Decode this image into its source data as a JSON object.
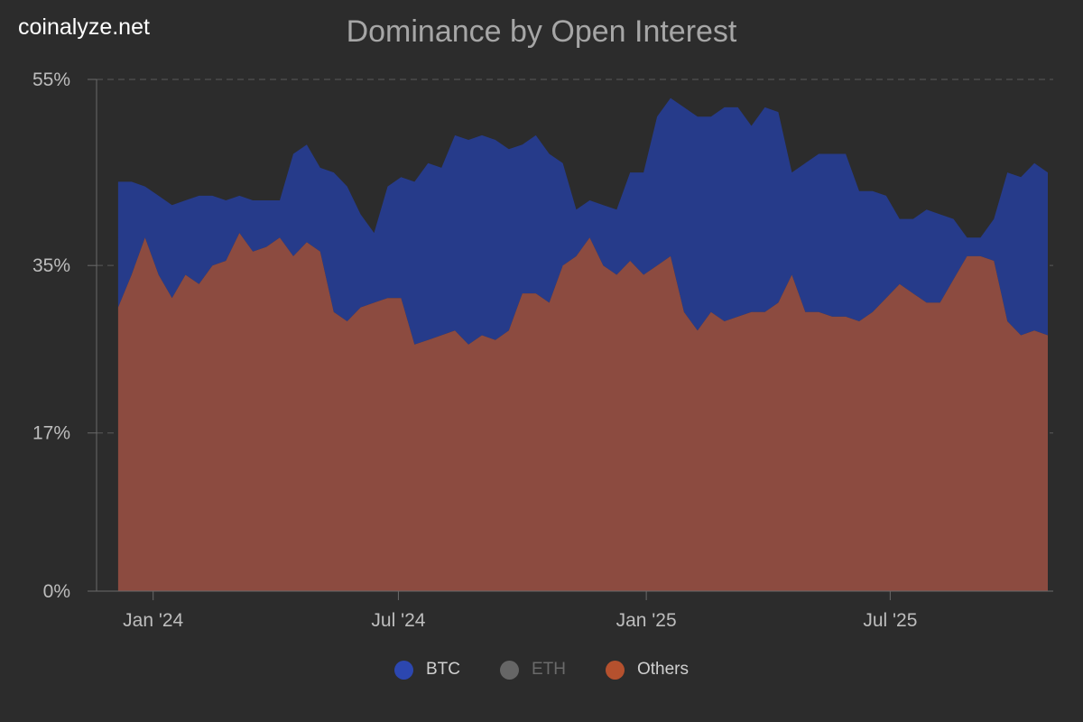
{
  "brand": "coinalyze.net",
  "chart_data": {
    "type": "area",
    "title": "Dominance by Open Interest",
    "stacked": true,
    "y_ticks": [
      "55%",
      "35%",
      "17%",
      "0%"
    ],
    "y_tick_values": [
      55,
      35,
      17,
      0
    ],
    "ylim": [
      0,
      55
    ],
    "x_ticks": [
      {
        "date": "2024-01-01",
        "label": "Jan '24"
      },
      {
        "date": "2024-07-01",
        "label": "Jul '24"
      },
      {
        "date": "2025-01-01",
        "label": "Jan '25"
      },
      {
        "date": "2025-07-01",
        "label": "Jul '25"
      }
    ],
    "xlim": [
      "2023-11-20",
      "2025-10-30"
    ],
    "grid": "horizontal dashed",
    "legend_position": "bottom",
    "colors": {
      "BTC": "#263b8a",
      "ETH": "#666666",
      "Others": "#8c4b40",
      "Others_legend": "#b5512e",
      "BTC_legend": "#2c47b0"
    },
    "legend": [
      {
        "name": "BTC",
        "label": "BTC",
        "color": "#2c47b0",
        "visible": true
      },
      {
        "name": "ETH",
        "label": "ETH",
        "color": "#666666",
        "visible": false
      },
      {
        "name": "Others",
        "label": "Others",
        "color": "#b5512e",
        "visible": true
      }
    ],
    "dates": [
      "2023-12-06",
      "2023-12-16",
      "2023-12-26",
      "2024-01-05",
      "2024-01-15",
      "2024-01-25",
      "2024-02-04",
      "2024-02-14",
      "2024-02-24",
      "2024-03-05",
      "2024-03-15",
      "2024-03-25",
      "2024-04-04",
      "2024-04-14",
      "2024-04-24",
      "2024-05-04",
      "2024-05-14",
      "2024-05-24",
      "2024-06-03",
      "2024-06-13",
      "2024-06-23",
      "2024-07-03",
      "2024-07-13",
      "2024-07-23",
      "2024-08-02",
      "2024-08-12",
      "2024-08-22",
      "2024-09-01",
      "2024-09-11",
      "2024-09-21",
      "2024-10-01",
      "2024-10-11",
      "2024-10-21",
      "2024-10-31",
      "2024-11-10",
      "2024-11-20",
      "2024-11-30",
      "2024-12-10",
      "2024-12-20",
      "2024-12-30",
      "2025-01-09",
      "2025-01-19",
      "2025-01-29",
      "2025-02-08",
      "2025-02-18",
      "2025-02-28",
      "2025-03-10",
      "2025-03-20",
      "2025-03-30",
      "2025-04-09",
      "2025-04-19",
      "2025-04-29",
      "2025-05-09",
      "2025-05-19",
      "2025-05-29",
      "2025-06-08",
      "2025-06-18",
      "2025-06-28",
      "2025-07-08",
      "2025-07-18",
      "2025-07-28",
      "2025-08-07",
      "2025-08-17",
      "2025-08-27",
      "2025-09-06",
      "2025-09-16",
      "2025-09-26",
      "2025-10-06",
      "2025-10-16",
      "2025-10-26"
    ],
    "series": [
      {
        "name": "Others",
        "values": [
          30.5,
          34,
          38,
          34,
          31.5,
          34,
          33,
          35,
          35.5,
          38.5,
          36.5,
          37,
          38,
          36,
          37.5,
          36.5,
          30,
          29,
          30.5,
          31,
          31.5,
          31.5,
          26.5,
          27,
          27.5,
          28,
          26.5,
          27.5,
          27,
          28,
          32,
          32,
          31,
          35,
          36,
          38,
          35,
          34,
          35.5,
          34,
          35,
          36,
          30,
          28,
          30,
          29,
          29.5,
          30,
          30,
          31,
          34,
          30,
          30,
          29.5,
          29.5,
          29,
          30,
          31.5,
          33,
          32,
          31,
          31,
          33.5,
          36,
          36,
          35.5,
          29,
          27.5,
          28,
          27.5
        ]
      },
      {
        "name": "BTC",
        "values": [
          13.5,
          10,
          5.5,
          8.5,
          10,
          8,
          9.5,
          7.5,
          6.5,
          4,
          5.5,
          5,
          4,
          11,
          10.5,
          9,
          15,
          14.5,
          10,
          7.5,
          12,
          13,
          17.5,
          19,
          18,
          21,
          22,
          21.5,
          21.5,
          19.5,
          16,
          17,
          16,
          11,
          5,
          4,
          6.5,
          7,
          9.5,
          11,
          16,
          17,
          22,
          23,
          21,
          23,
          22.5,
          20,
          22,
          20.5,
          11,
          16,
          17,
          17.5,
          17.5,
          14,
          13,
          11,
          7,
          8,
          10,
          9.5,
          6.5,
          2,
          2,
          4.5,
          16,
          17,
          18,
          17.5
        ]
      }
    ]
  }
}
